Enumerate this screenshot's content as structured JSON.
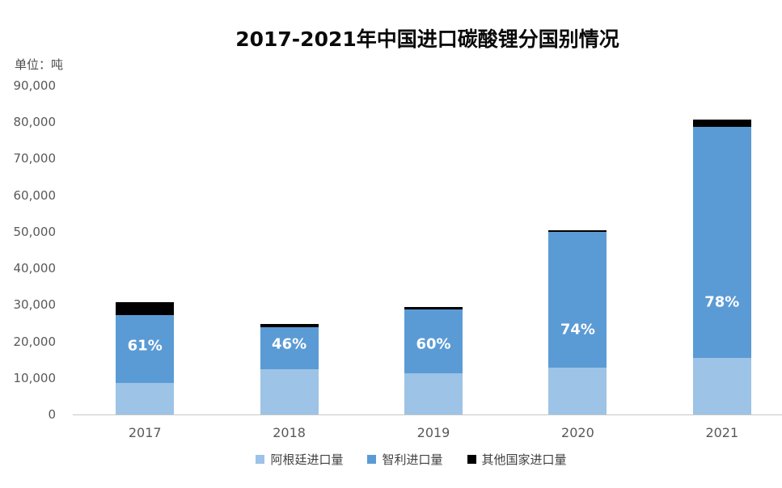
{
  "unit_label": "单位：吨",
  "chart_data": {
    "type": "bar",
    "stacked": true,
    "title": "2017-2021年中国进口碳酸锂分国别情况",
    "unit": "吨",
    "categories": [
      "2017",
      "2018",
      "2019",
      "2020",
      "2021"
    ],
    "series": [
      {
        "name": "阿根廷进口量",
        "color": "#9DC3E6",
        "values": [
          8600,
          12400,
          11300,
          12800,
          15500
        ]
      },
      {
        "name": "智利进口量",
        "color": "#5B9BD5",
        "values": [
          18600,
          11400,
          17500,
          37200,
          63200
        ]
      },
      {
        "name": "其他国家进口量",
        "color": "#000000",
        "values": [
          3500,
          900,
          600,
          500,
          2000
        ]
      }
    ],
    "data_labels": {
      "series": "智利进口量",
      "values": [
        "61%",
        "46%",
        "60%",
        "74%",
        "78%"
      ]
    },
    "yticks": [
      "90,000",
      "80,000",
      "70,000",
      "60,000",
      "50,000",
      "40,000",
      "30,000",
      "20,000",
      "10,000",
      "0"
    ],
    "ylim": [
      0,
      90000
    ],
    "ytick_interval": 10000,
    "grid": false,
    "legend_position": "bottom",
    "axis_line_color": "#C8C8C8",
    "axis_text_color": "#595959"
  }
}
